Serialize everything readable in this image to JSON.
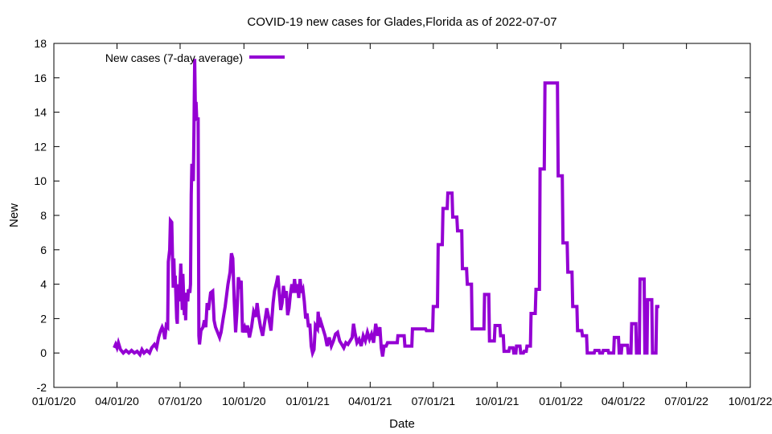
{
  "chart_data": {
    "type": "line",
    "title": "COVID-19 new cases for Glades,Florida as of 2022-07-07",
    "xlabel": "Date",
    "ylabel": "New",
    "x_range": [
      "2020-01-01",
      "2022-10-01"
    ],
    "x_ticks": [
      "01/01/20",
      "04/01/20",
      "07/01/20",
      "10/01/20",
      "01/01/21",
      "04/01/21",
      "07/01/21",
      "10/01/21",
      "01/01/22",
      "04/01/22",
      "07/01/22",
      "10/01/22"
    ],
    "ylim": [
      -2,
      18
    ],
    "y_ticks": [
      -2,
      0,
      2,
      4,
      6,
      8,
      10,
      12,
      14,
      16,
      18
    ],
    "grid": false,
    "legend_position": "top-left",
    "colors": {
      "series": "#9400d3",
      "axis": "#000000"
    },
    "series": [
      {
        "name": "New cases (7-day average)",
        "points": [
          [
            "2020-03-28",
            0.3
          ],
          [
            "2020-03-30",
            0.5
          ],
          [
            "2020-04-01",
            0.3
          ],
          [
            "2020-04-03",
            0.6
          ],
          [
            "2020-04-06",
            0.2
          ],
          [
            "2020-04-10",
            0.0
          ],
          [
            "2020-04-14",
            0.15
          ],
          [
            "2020-04-18",
            0.0
          ],
          [
            "2020-04-22",
            0.15
          ],
          [
            "2020-04-26",
            0.0
          ],
          [
            "2020-04-30",
            0.1
          ],
          [
            "2020-05-04",
            -0.1
          ],
          [
            "2020-05-07",
            0.2
          ],
          [
            "2020-05-10",
            0.0
          ],
          [
            "2020-05-14",
            0.15
          ],
          [
            "2020-05-18",
            0.0
          ],
          [
            "2020-05-21",
            0.3
          ],
          [
            "2020-05-25",
            0.5
          ],
          [
            "2020-05-28",
            0.3
          ],
          [
            "2020-05-31",
            0.9
          ],
          [
            "2020-06-03",
            1.3
          ],
          [
            "2020-06-05",
            1.5
          ],
          [
            "2020-06-07",
            1.3
          ],
          [
            "2020-06-09",
            0.8
          ],
          [
            "2020-06-11",
            1.6
          ],
          [
            "2020-06-13",
            1.5
          ],
          [
            "2020-06-14",
            5.3
          ],
          [
            "2020-06-16",
            6.0
          ],
          [
            "2020-06-17",
            7.7
          ],
          [
            "2020-06-19",
            7.6
          ],
          [
            "2020-06-20",
            5.6
          ],
          [
            "2020-06-21",
            3.8
          ],
          [
            "2020-06-22",
            5.5
          ],
          [
            "2020-06-23",
            4.0
          ],
          [
            "2020-06-24",
            4.5
          ],
          [
            "2020-06-26",
            2.0
          ],
          [
            "2020-06-27",
            1.7
          ],
          [
            "2020-06-28",
            4.0
          ],
          [
            "2020-06-30",
            3.0
          ],
          [
            "2020-07-02",
            5.2
          ],
          [
            "2020-07-04",
            2.5
          ],
          [
            "2020-07-05",
            4.6
          ],
          [
            "2020-07-07",
            2.2
          ],
          [
            "2020-07-08",
            3.0
          ],
          [
            "2020-07-09",
            1.9
          ],
          [
            "2020-07-10",
            3.5
          ],
          [
            "2020-07-12",
            3.0
          ],
          [
            "2020-07-13",
            3.7
          ],
          [
            "2020-07-15",
            3.5
          ],
          [
            "2020-07-16",
            4.0
          ],
          [
            "2020-07-17",
            9.2
          ],
          [
            "2020-07-18",
            11.0
          ],
          [
            "2020-07-19",
            10.2
          ],
          [
            "2020-07-20",
            10.0
          ],
          [
            "2020-07-21",
            13.0
          ],
          [
            "2020-07-22",
            17.1
          ],
          [
            "2020-07-23",
            14.0
          ],
          [
            "2020-07-24",
            14.6
          ],
          [
            "2020-07-25",
            13.5
          ],
          [
            "2020-07-27",
            13.7
          ],
          [
            "2020-07-28",
            1.0
          ],
          [
            "2020-07-29",
            0.5
          ],
          [
            "2020-07-31",
            1.3
          ],
          [
            "2020-08-03",
            1.5
          ],
          [
            "2020-08-05",
            1.9
          ],
          [
            "2020-08-07",
            1.5
          ],
          [
            "2020-08-09",
            2.9
          ],
          [
            "2020-08-11",
            2.5
          ],
          [
            "2020-08-14",
            3.5
          ],
          [
            "2020-08-17",
            3.6
          ],
          [
            "2020-08-19",
            1.9
          ],
          [
            "2020-08-21",
            1.5
          ],
          [
            "2020-08-24",
            1.2
          ],
          [
            "2020-08-27",
            0.9
          ],
          [
            "2020-08-29",
            1.2
          ],
          [
            "2020-09-01",
            2.0
          ],
          [
            "2020-09-04",
            2.7
          ],
          [
            "2020-09-08",
            4.0
          ],
          [
            "2020-09-11",
            4.7
          ],
          [
            "2020-09-13",
            5.8
          ],
          [
            "2020-09-15",
            5.5
          ],
          [
            "2020-09-17",
            3.0
          ],
          [
            "2020-09-19",
            1.2
          ],
          [
            "2020-09-21",
            2.4
          ],
          [
            "2020-09-23",
            4.4
          ],
          [
            "2020-09-25",
            4.0
          ],
          [
            "2020-09-27",
            4.2
          ],
          [
            "2020-09-29",
            1.2
          ],
          [
            "2020-10-02",
            1.5
          ],
          [
            "2020-10-04",
            1.2
          ],
          [
            "2020-10-06",
            1.6
          ],
          [
            "2020-10-09",
            0.9
          ],
          [
            "2020-10-12",
            1.5
          ],
          [
            "2020-10-15",
            2.4
          ],
          [
            "2020-10-18",
            2.1
          ],
          [
            "2020-10-20",
            2.9
          ],
          [
            "2020-10-22",
            2.2
          ],
          [
            "2020-10-25",
            1.5
          ],
          [
            "2020-10-28",
            1.0
          ],
          [
            "2020-10-31",
            1.8
          ],
          [
            "2020-11-03",
            2.6
          ],
          [
            "2020-11-06",
            2.0
          ],
          [
            "2020-11-09",
            1.3
          ],
          [
            "2020-11-12",
            2.9
          ],
          [
            "2020-11-14",
            3.6
          ],
          [
            "2020-11-17",
            4.1
          ],
          [
            "2020-11-19",
            4.5
          ],
          [
            "2020-11-21",
            3.5
          ],
          [
            "2020-11-23",
            2.5
          ],
          [
            "2020-11-25",
            2.9
          ],
          [
            "2020-11-27",
            3.9
          ],
          [
            "2020-11-29",
            3.2
          ],
          [
            "2020-12-01",
            3.6
          ],
          [
            "2020-12-03",
            2.2
          ],
          [
            "2020-12-05",
            2.6
          ],
          [
            "2020-12-07",
            3.4
          ],
          [
            "2020-12-09",
            4.0
          ],
          [
            "2020-12-11",
            3.5
          ],
          [
            "2020-12-13",
            4.3
          ],
          [
            "2020-12-15",
            3.5
          ],
          [
            "2020-12-17",
            4.0
          ],
          [
            "2020-12-19",
            3.2
          ],
          [
            "2020-12-21",
            4.3
          ],
          [
            "2020-12-23",
            3.5
          ],
          [
            "2020-12-25",
            3.7
          ],
          [
            "2020-12-27",
            3.0
          ],
          [
            "2020-12-29",
            2.0
          ],
          [
            "2020-12-31",
            2.3
          ],
          [
            "2021-01-02",
            1.5
          ],
          [
            "2021-01-04",
            1.7
          ],
          [
            "2021-01-06",
            0.4
          ],
          [
            "2021-01-08",
            0.0
          ],
          [
            "2021-01-10",
            0.2
          ],
          [
            "2021-01-12",
            1.6
          ],
          [
            "2021-01-15",
            1.4
          ],
          [
            "2021-01-16",
            2.4
          ],
          [
            "2021-01-18",
            1.5
          ],
          [
            "2021-01-20",
            1.8
          ],
          [
            "2021-01-23",
            1.4
          ],
          [
            "2021-01-26",
            1.0
          ],
          [
            "2021-01-29",
            0.4
          ],
          [
            "2021-02-01",
            0.9
          ],
          [
            "2021-02-04",
            0.4
          ],
          [
            "2021-02-07",
            0.7
          ],
          [
            "2021-02-10",
            1.1
          ],
          [
            "2021-02-13",
            1.2
          ],
          [
            "2021-02-16",
            0.7
          ],
          [
            "2021-02-19",
            0.5
          ],
          [
            "2021-02-22",
            0.3
          ],
          [
            "2021-02-25",
            0.6
          ],
          [
            "2021-02-28",
            0.5
          ],
          [
            "2021-03-03",
            0.7
          ],
          [
            "2021-03-06",
            0.9
          ],
          [
            "2021-03-08",
            1.7
          ],
          [
            "2021-03-10",
            1.2
          ],
          [
            "2021-03-13",
            0.6
          ],
          [
            "2021-03-16",
            0.8
          ],
          [
            "2021-03-19",
            0.4
          ],
          [
            "2021-03-22",
            1.0
          ],
          [
            "2021-03-25",
            0.7
          ],
          [
            "2021-03-28",
            1.2
          ],
          [
            "2021-03-31",
            0.8
          ],
          [
            "2021-04-03",
            1.1
          ],
          [
            "2021-04-06",
            0.6
          ],
          [
            "2021-04-09",
            1.7
          ],
          [
            "2021-04-12",
            1.0
          ],
          [
            "2021-04-15",
            1.5
          ],
          [
            "2021-04-17",
            0.3
          ],
          [
            "2021-04-19",
            -0.2
          ],
          [
            "2021-04-21",
            0.4
          ],
          [
            "2021-04-24",
            0.4
          ],
          [
            "2021-04-26",
            0.6
          ],
          [
            "2021-05-10",
            0.6
          ],
          [
            "2021-05-11",
            1.0
          ],
          [
            "2021-05-20",
            1.0
          ],
          [
            "2021-05-21",
            0.4
          ],
          [
            "2021-05-31",
            0.4
          ],
          [
            "2021-06-01",
            1.4
          ],
          [
            "2021-06-20",
            1.4
          ],
          [
            "2021-06-21",
            1.3
          ],
          [
            "2021-06-30",
            1.3
          ],
          [
            "2021-07-01",
            2.7
          ],
          [
            "2021-07-07",
            2.7
          ],
          [
            "2021-07-08",
            6.3
          ],
          [
            "2021-07-14",
            6.3
          ],
          [
            "2021-07-15",
            8.4
          ],
          [
            "2021-07-21",
            8.4
          ],
          [
            "2021-07-22",
            9.3
          ],
          [
            "2021-07-28",
            9.3
          ],
          [
            "2021-07-29",
            7.9
          ],
          [
            "2021-08-04",
            7.9
          ],
          [
            "2021-08-05",
            7.1
          ],
          [
            "2021-08-11",
            7.1
          ],
          [
            "2021-08-12",
            4.9
          ],
          [
            "2021-08-18",
            4.9
          ],
          [
            "2021-08-19",
            4.0
          ],
          [
            "2021-08-25",
            4.0
          ],
          [
            "2021-08-26",
            1.4
          ],
          [
            "2021-09-12",
            1.4
          ],
          [
            "2021-09-13",
            3.4
          ],
          [
            "2021-09-19",
            3.4
          ],
          [
            "2021-09-20",
            0.7
          ],
          [
            "2021-09-27",
            0.7
          ],
          [
            "2021-09-28",
            1.6
          ],
          [
            "2021-10-05",
            1.6
          ],
          [
            "2021-10-06",
            1.0
          ],
          [
            "2021-10-10",
            1.0
          ],
          [
            "2021-10-11",
            0.1
          ],
          [
            "2021-10-18",
            0.1
          ],
          [
            "2021-10-19",
            0.3
          ],
          [
            "2021-10-24",
            0.3
          ],
          [
            "2021-10-25",
            0.0
          ],
          [
            "2021-10-28",
            0.0
          ],
          [
            "2021-10-29",
            0.4
          ],
          [
            "2021-11-03",
            0.4
          ],
          [
            "2021-11-04",
            0.0
          ],
          [
            "2021-11-08",
            0.0
          ],
          [
            "2021-11-09",
            0.1
          ],
          [
            "2021-11-12",
            0.1
          ],
          [
            "2021-11-13",
            0.4
          ],
          [
            "2021-11-18",
            0.4
          ],
          [
            "2021-11-19",
            2.3
          ],
          [
            "2021-11-25",
            2.3
          ],
          [
            "2021-11-26",
            3.7
          ],
          [
            "2021-12-01",
            3.7
          ],
          [
            "2021-12-02",
            10.7
          ],
          [
            "2021-12-08",
            10.7
          ],
          [
            "2021-12-09",
            15.7
          ],
          [
            "2021-12-27",
            15.7
          ],
          [
            "2021-12-28",
            10.3
          ],
          [
            "2022-01-03",
            10.3
          ],
          [
            "2022-01-04",
            6.4
          ],
          [
            "2022-01-10",
            6.4
          ],
          [
            "2022-01-11",
            4.7
          ],
          [
            "2022-01-17",
            4.7
          ],
          [
            "2022-01-18",
            2.7
          ],
          [
            "2022-01-24",
            2.7
          ],
          [
            "2022-01-25",
            1.3
          ],
          [
            "2022-01-31",
            1.3
          ],
          [
            "2022-02-01",
            1.0
          ],
          [
            "2022-02-07",
            1.0
          ],
          [
            "2022-02-08",
            0.0
          ],
          [
            "2022-02-18",
            0.0
          ],
          [
            "2022-02-19",
            0.15
          ],
          [
            "2022-02-25",
            0.15
          ],
          [
            "2022-02-26",
            0.0
          ],
          [
            "2022-03-02",
            0.0
          ],
          [
            "2022-03-03",
            0.15
          ],
          [
            "2022-03-10",
            0.15
          ],
          [
            "2022-03-11",
            0.0
          ],
          [
            "2022-03-18",
            0.0
          ],
          [
            "2022-03-19",
            0.9
          ],
          [
            "2022-03-25",
            0.9
          ],
          [
            "2022-03-26",
            0.0
          ],
          [
            "2022-03-29",
            0.0
          ],
          [
            "2022-03-30",
            0.45
          ],
          [
            "2022-04-07",
            0.45
          ],
          [
            "2022-04-08",
            0.0
          ],
          [
            "2022-04-12",
            0.0
          ],
          [
            "2022-04-13",
            1.7
          ],
          [
            "2022-04-19",
            1.7
          ],
          [
            "2022-04-20",
            0.0
          ],
          [
            "2022-04-24",
            0.0
          ],
          [
            "2022-04-25",
            4.3
          ],
          [
            "2022-05-01",
            4.3
          ],
          [
            "2022-05-02",
            0.0
          ],
          [
            "2022-05-05",
            0.0
          ],
          [
            "2022-05-06",
            3.1
          ],
          [
            "2022-05-12",
            3.1
          ],
          [
            "2022-05-13",
            0.0
          ],
          [
            "2022-05-18",
            0.0
          ],
          [
            "2022-05-19",
            2.7
          ],
          [
            "2022-05-23",
            2.7
          ]
        ]
      }
    ]
  }
}
